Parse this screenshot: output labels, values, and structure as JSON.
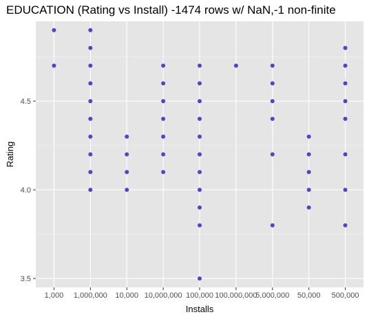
{
  "chart_data": {
    "type": "scatter",
    "title": "EDUCATION (Rating vs Install) -1474 rows w/ NaN,-1 non-finite",
    "xlabel": "Installs",
    "ylabel": "Rating",
    "categories": [
      "1,000",
      "1,000,000",
      "10,000",
      "10,000,000",
      "100,000",
      "100,000,000",
      "5,000,000",
      "50,000",
      "500,000"
    ],
    "y_ticks": [
      3.5,
      4.0,
      4.5
    ],
    "ylim": [
      3.45,
      4.95
    ],
    "grid": true,
    "point_color": "#5b3fc4",
    "background": "#e5e5e5",
    "points": [
      {
        "x": "1,000",
        "y": 4.9
      },
      {
        "x": "1,000",
        "y": 4.7
      },
      {
        "x": "1,000,000",
        "y": 4.9
      },
      {
        "x": "1,000,000",
        "y": 4.8
      },
      {
        "x": "1,000,000",
        "y": 4.7
      },
      {
        "x": "1,000,000",
        "y": 4.6
      },
      {
        "x": "1,000,000",
        "y": 4.5
      },
      {
        "x": "1,000,000",
        "y": 4.4
      },
      {
        "x": "1,000,000",
        "y": 4.3
      },
      {
        "x": "1,000,000",
        "y": 4.2
      },
      {
        "x": "1,000,000",
        "y": 4.1
      },
      {
        "x": "1,000,000",
        "y": 4.0
      },
      {
        "x": "10,000",
        "y": 4.3
      },
      {
        "x": "10,000",
        "y": 4.2
      },
      {
        "x": "10,000",
        "y": 4.1
      },
      {
        "x": "10,000",
        "y": 4.0
      },
      {
        "x": "10,000,000",
        "y": 4.7
      },
      {
        "x": "10,000,000",
        "y": 4.6
      },
      {
        "x": "10,000,000",
        "y": 4.5
      },
      {
        "x": "10,000,000",
        "y": 4.4
      },
      {
        "x": "10,000,000",
        "y": 4.3
      },
      {
        "x": "10,000,000",
        "y": 4.2
      },
      {
        "x": "10,000,000",
        "y": 4.1
      },
      {
        "x": "100,000",
        "y": 4.7
      },
      {
        "x": "100,000",
        "y": 4.6
      },
      {
        "x": "100,000",
        "y": 4.5
      },
      {
        "x": "100,000",
        "y": 4.4
      },
      {
        "x": "100,000",
        "y": 4.3
      },
      {
        "x": "100,000",
        "y": 4.2
      },
      {
        "x": "100,000",
        "y": 4.1
      },
      {
        "x": "100,000",
        "y": 4.0
      },
      {
        "x": "100,000",
        "y": 3.9
      },
      {
        "x": "100,000",
        "y": 3.8
      },
      {
        "x": "100,000",
        "y": 3.5
      },
      {
        "x": "100,000,000",
        "y": 4.7
      },
      {
        "x": "5,000,000",
        "y": 4.7
      },
      {
        "x": "5,000,000",
        "y": 4.6
      },
      {
        "x": "5,000,000",
        "y": 4.5
      },
      {
        "x": "5,000,000",
        "y": 4.4
      },
      {
        "x": "5,000,000",
        "y": 4.2
      },
      {
        "x": "5,000,000",
        "y": 3.8
      },
      {
        "x": "50,000",
        "y": 4.3
      },
      {
        "x": "50,000",
        "y": 4.2
      },
      {
        "x": "50,000",
        "y": 4.1
      },
      {
        "x": "50,000",
        "y": 4.0
      },
      {
        "x": "50,000",
        "y": 3.9
      },
      {
        "x": "500,000",
        "y": 4.8
      },
      {
        "x": "500,000",
        "y": 4.7
      },
      {
        "x": "500,000",
        "y": 4.6
      },
      {
        "x": "500,000",
        "y": 4.5
      },
      {
        "x": "500,000",
        "y": 4.4
      },
      {
        "x": "500,000",
        "y": 4.2
      },
      {
        "x": "500,000",
        "y": 4.0
      },
      {
        "x": "500,000",
        "y": 3.8
      }
    ]
  }
}
